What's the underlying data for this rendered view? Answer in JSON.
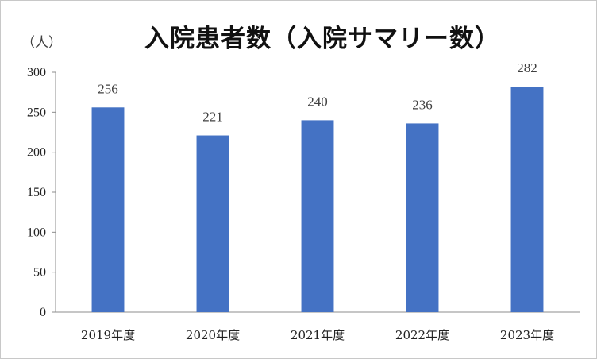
{
  "chart_data": {
    "type": "bar",
    "title": "入院患者数（入院サマリー数）",
    "unit_label": "（人）",
    "categories": [
      "2019年度",
      "2020年度",
      "2021年度",
      "2022年度",
      "2023年度"
    ],
    "values": [
      256,
      221,
      240,
      236,
      282
    ],
    "ylim": [
      0,
      300
    ],
    "yticks": [
      0,
      50,
      100,
      150,
      200,
      250,
      300
    ],
    "bar_color": "#4472C4",
    "grid": false,
    "legend": "none"
  }
}
